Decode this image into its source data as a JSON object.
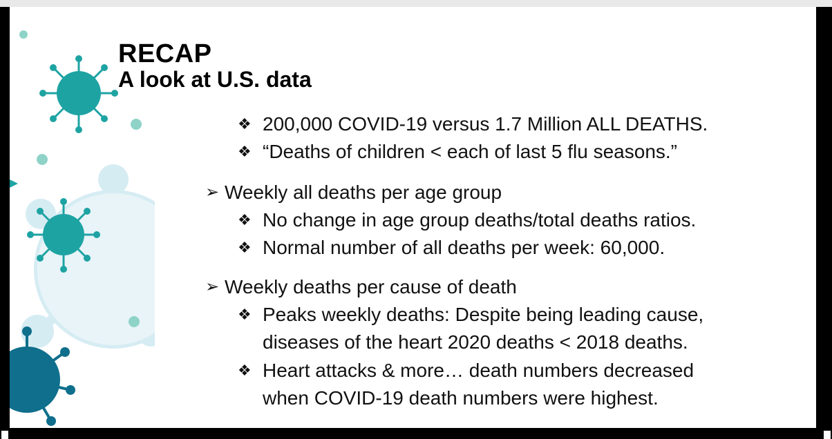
{
  "slide": {
    "title": "RECAP",
    "subtitle": "A look at U.S. data"
  },
  "bullets": {
    "b1": "200,000 COVID-19 versus 1.7 Million ALL DEATHS.",
    "b2": "“Deaths of children < each of last 5 flu seasons.”",
    "h1": "Weekly all deaths per age group",
    "b3": "No change in age group deaths/total deaths ratios.",
    "b4": "Normal number of all deaths per week: 60,000.",
    "h2": "Weekly deaths per cause of death",
    "b5a": "Peaks weekly deaths: Despite being leading cause,",
    "b5b": "diseases of the heart 2020 deaths < 2018 deaths.",
    "b6a": "Heart attacks & more… death numbers decreased",
    "b6b": "when COVID-19 death numbers were highest."
  },
  "symbols": {
    "diamond_bullet": "❖",
    "arrow_bullet": "➢"
  },
  "colors": {
    "virus_teal": "#1ea3a3",
    "virus_dark": "#0f6f8c",
    "virus_light": "#d6ecf3"
  }
}
